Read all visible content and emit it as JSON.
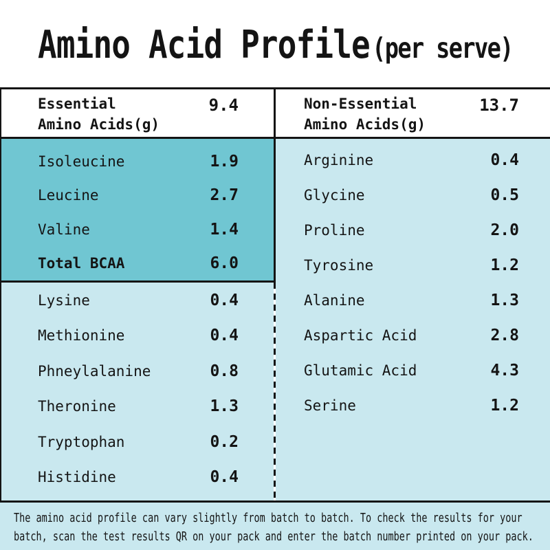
{
  "title": {
    "main": "Amino Acid Profile",
    "suffix": "(per serve)"
  },
  "columns": {
    "left": {
      "header": {
        "label": "Essential\nAmino Acids(g)",
        "value": "9.4"
      },
      "bcaa_rows": [
        {
          "name": "Isoleucine",
          "value": "1.9"
        },
        {
          "name": "Leucine",
          "value": "2.7"
        },
        {
          "name": "Valine",
          "value": "1.4"
        },
        {
          "name": "Total BCAA",
          "value": "6.0",
          "bold": true
        }
      ],
      "rows": [
        {
          "name": "Lysine",
          "value": "0.4"
        },
        {
          "name": "Methionine",
          "value": "0.4"
        },
        {
          "name": "Phneylalanine",
          "value": "0.8"
        },
        {
          "name": "Theronine",
          "value": "1.3"
        },
        {
          "name": "Tryptophan",
          "value": "0.2"
        },
        {
          "name": "Histidine",
          "value": "0.4"
        }
      ]
    },
    "right": {
      "header": {
        "label": "Non-Essential\nAmino Acids(g)",
        "value": "13.7"
      },
      "rows": [
        {
          "name": "Arginine",
          "value": "0.4"
        },
        {
          "name": "Glycine",
          "value": "0.5"
        },
        {
          "name": "Proline",
          "value": "2.0"
        },
        {
          "name": "Tyrosine",
          "value": "1.2"
        },
        {
          "name": "Alanine",
          "value": "1.3"
        },
        {
          "name": "Aspartic Acid",
          "value": "2.8"
        },
        {
          "name": "Glutamic Acid",
          "value": "4.3"
        },
        {
          "name": "Serine",
          "value": "1.2"
        }
      ]
    }
  },
  "footer": {
    "line1": "The amino acid profile can vary slightly from batch to batch. To check the results for your",
    "line2": "batch, scan the test results QR on your pack and enter the batch number printed on your pack."
  },
  "colors": {
    "teal": "#70c6d2",
    "light_blue": "#c9e8ef",
    "ink": "#141414"
  },
  "chart_data": {
    "type": "table",
    "title": "Amino Acid Profile (per serve)",
    "columns": [
      "Amino Acid",
      "grams per serve"
    ],
    "groups": [
      {
        "name": "Essential Amino Acids(g)",
        "total": 9.4,
        "rows": [
          [
            "Isoleucine",
            1.9
          ],
          [
            "Leucine",
            2.7
          ],
          [
            "Valine",
            1.4
          ],
          [
            "Total BCAA",
            6.0
          ],
          [
            "Lysine",
            0.4
          ],
          [
            "Methionine",
            0.4
          ],
          [
            "Phneylalanine",
            0.8
          ],
          [
            "Theronine",
            1.3
          ],
          [
            "Tryptophan",
            0.2
          ],
          [
            "Histidine",
            0.4
          ]
        ]
      },
      {
        "name": "Non-Essential Amino Acids(g)",
        "total": 13.7,
        "rows": [
          [
            "Arginine",
            0.4
          ],
          [
            "Glycine",
            0.5
          ],
          [
            "Proline",
            2.0
          ],
          [
            "Tyrosine",
            1.2
          ],
          [
            "Alanine",
            1.3
          ],
          [
            "Aspartic Acid",
            2.8
          ],
          [
            "Glutamic Acid",
            4.3
          ],
          [
            "Serine",
            1.2
          ]
        ]
      }
    ]
  }
}
